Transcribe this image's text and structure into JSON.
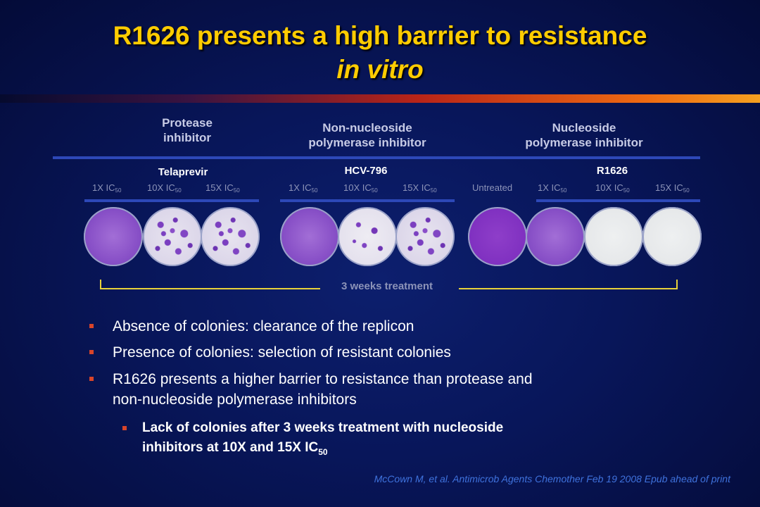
{
  "title": {
    "line1": "R1626 presents a high barrier to resistance",
    "line2": "in vitro"
  },
  "groups": [
    {
      "line1": "Protease",
      "line2": "inhibitor"
    },
    {
      "line1": "Non-nucleoside",
      "line2": "polymerase inhibitor"
    },
    {
      "line1": "Nucleoside",
      "line2": "polymerase inhibitor"
    }
  ],
  "drugs": [
    "Telaprevir",
    "HCV-796",
    "R1626"
  ],
  "untreated_label": "Untreated",
  "dose_prefixes": [
    "1X IC",
    "10X IC",
    "15X IC"
  ],
  "dose_subscript": "50",
  "dishes": [
    {
      "label": "Telaprevir 1X IC50",
      "growth": "dense"
    },
    {
      "label": "Telaprevir 10X IC50",
      "growth": "many colonies"
    },
    {
      "label": "Telaprevir 15X IC50",
      "growth": "many colonies"
    },
    {
      "label": "HCV-796 1X IC50",
      "growth": "dense"
    },
    {
      "label": "HCV-796 10X IC50",
      "growth": "few colonies"
    },
    {
      "label": "HCV-796 15X IC50",
      "growth": "many colonies"
    },
    {
      "label": "Untreated",
      "growth": "full"
    },
    {
      "label": "R1626 1X IC50",
      "growth": "dense"
    },
    {
      "label": "R1626 10X IC50",
      "growth": "clear"
    },
    {
      "label": "R1626 15X IC50",
      "growth": "clear"
    }
  ],
  "treatment_label": "3 weeks treatment",
  "bullets": [
    "Absence of colonies: clearance of the replicon",
    "Presence of colonies: selection of resistant colonies",
    "R1626 presents a higher barrier to resistance than protease and",
    "non-nucleoside polymerase inhibitors"
  ],
  "sub_bullet": {
    "line1": "Lack of colonies after 3 weeks treatment with nucleoside",
    "line2": "inhibitors at 10X and 15X IC",
    "line2_sub": "50"
  },
  "citation": "McCown M, et al. Antimicrob Agents Chemother Feb 19 2008 Epub ahead of print",
  "colors": {
    "title": "#ffcc00",
    "accent_bar": "#2d48b8",
    "bracket": "#e8d23a",
    "bullet_mark": "#d8452a",
    "citation": "#3f72dd"
  }
}
